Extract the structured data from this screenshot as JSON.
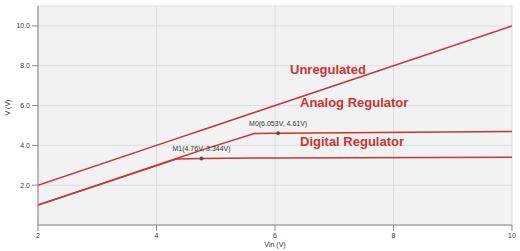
{
  "chart_data": {
    "type": "line",
    "x_label": "Vin (V)",
    "y_label": "V (V)",
    "x": [
      2,
      4.35,
      4.76,
      5.65,
      6.053,
      10
    ],
    "series": [
      {
        "name": "Unregulated",
        "color": "#cc3333",
        "values": [
          2,
          4.35,
          4.76,
          5.65,
          6.053,
          10
        ]
      },
      {
        "name": "Analog Regulator",
        "color": "#cc3333",
        "values": [
          1.0,
          3.35,
          3.76,
          4.6,
          4.61,
          4.7
        ]
      },
      {
        "name": "Digital Regulator",
        "color": "#cc3333",
        "values": [
          1.0,
          3.32,
          3.344,
          3.36,
          3.37,
          3.4
        ]
      }
    ],
    "markers": [
      {
        "text": "M0(6.053V, 4.61V)",
        "x": 6.053,
        "y": 4.61
      },
      {
        "text": "M1(4.76V, 3.344V)",
        "x": 4.76,
        "y": 3.344
      }
    ],
    "xlim": [
      2,
      10
    ],
    "xticks": [
      2,
      4,
      6,
      8,
      10
    ],
    "ylim": [
      0,
      11
    ],
    "yticks": [
      {
        "value": 2,
        "label": "2.0"
      },
      {
        "value": 4,
        "label": "4.0"
      },
      {
        "value": 6,
        "label": "6.0"
      },
      {
        "value": 8,
        "label": "8.0"
      },
      {
        "value": 10,
        "label": "10.0"
      }
    ],
    "grid": true
  }
}
